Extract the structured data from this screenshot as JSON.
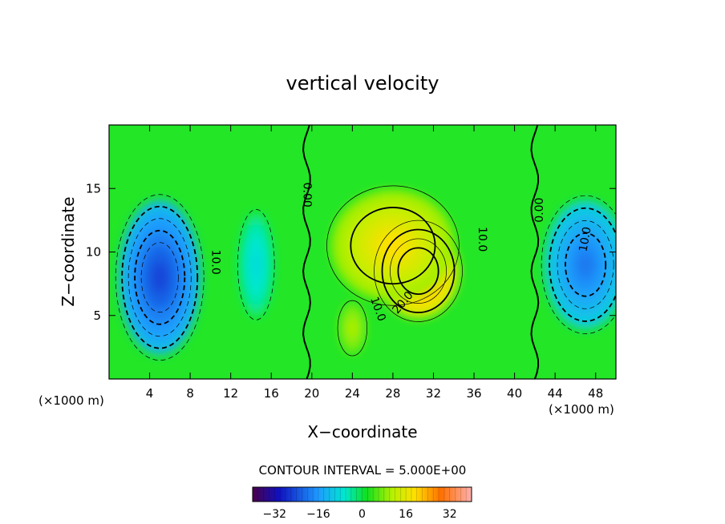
{
  "chart_data": {
    "type": "heatmap",
    "title": "vertical velocity",
    "xlabel": "X−coordinate",
    "ylabel": "Z−coordinate",
    "x_units": "(×1000 m)",
    "y_units": "(×1000 m)",
    "xlim": [
      0,
      50
    ],
    "ylim": [
      0,
      20
    ],
    "x_ticks": [
      "4",
      "8",
      "12",
      "16",
      "20",
      "24",
      "28",
      "32",
      "36",
      "40",
      "44",
      "48"
    ],
    "y_ticks": [
      "5",
      "10",
      "15"
    ],
    "contour_interval_label": "CONTOUR INTERVAL = 5.000E+00",
    "contour_interval": 5.0,
    "colorbar": {
      "range": [
        -40,
        40
      ],
      "ticks": [
        "−32",
        "−16",
        "0",
        "16",
        "32"
      ]
    },
    "contour_labels": [
      {
        "text": "0.00",
        "x": 19.5,
        "z": 14.5,
        "rotate": 90
      },
      {
        "text": "0.00",
        "x": 42.5,
        "z": 13.3,
        "rotate": -90
      },
      {
        "text": "10.0",
        "x": 10.5,
        "z": 9.2,
        "rotate": 90
      },
      {
        "text": "10.0",
        "x": 36.8,
        "z": 11.0,
        "rotate": 90
      },
      {
        "text": "10.0",
        "x": 26.5,
        "z": 5.5,
        "rotate": 70
      },
      {
        "text": "20.0",
        "x": 29.0,
        "z": 6.0,
        "rotate": -50
      },
      {
        "text": "10.0",
        "x": 47.0,
        "z": 11.0,
        "rotate": -80
      }
    ],
    "cells": [
      {
        "x": 5.0,
        "z": 8.0,
        "sx": 6.0,
        "sz": 9.0,
        "value": -26
      },
      {
        "x": 47.0,
        "z": 9.0,
        "sx": 6.0,
        "sz": 7.5,
        "value": -20
      },
      {
        "x": 30.5,
        "z": 8.5,
        "sx": 6.0,
        "sz": 5.5,
        "value": 22
      },
      {
        "x": 28.0,
        "z": 10.5,
        "sx": 9.0,
        "sz": 6.5,
        "value": 14
      },
      {
        "x": 14.5,
        "z": 9.0,
        "sx": 2.5,
        "sz": 6.0,
        "value": -8
      },
      {
        "x": 24.0,
        "z": 4.0,
        "sx": 2.0,
        "sz": 3.0,
        "value": 8
      }
    ]
  }
}
